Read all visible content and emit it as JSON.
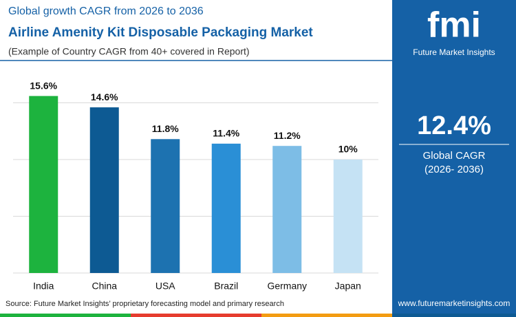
{
  "chart_data": {
    "type": "bar",
    "title": "Global growth CAGR from 2026 to 2036",
    "subtitle": "Airline Amenity Kit Disposable Packaging Market",
    "note": "(Example of Country CAGR from 40+ covered in Report)",
    "categories": [
      "India",
      "China",
      "USA",
      "Brazil",
      "Germany",
      "Japan"
    ],
    "values": [
      15.6,
      14.6,
      11.8,
      11.4,
      11.2,
      10
    ],
    "value_labels": [
      "15.6%",
      "14.6%",
      "11.8%",
      "11.4%",
      "11.2%",
      "10%"
    ],
    "colors": [
      "#1db33e",
      "#0d5a93",
      "#1d72b0",
      "#2a8fd6",
      "#7dbde6",
      "#c5e2f4"
    ],
    "ylim": [
      0,
      16
    ],
    "yticks": [
      0,
      5,
      10,
      15
    ],
    "grid": true,
    "source": "Source: Future Market Insights’ proprietary forecasting model and primary research"
  },
  "panel": {
    "logo": "fmi",
    "brand": "Future Market Insights",
    "value": "12.4%",
    "label": "Global CAGR",
    "period": "(2026- 2036)",
    "url": "www.futuremarketinsights.com"
  }
}
